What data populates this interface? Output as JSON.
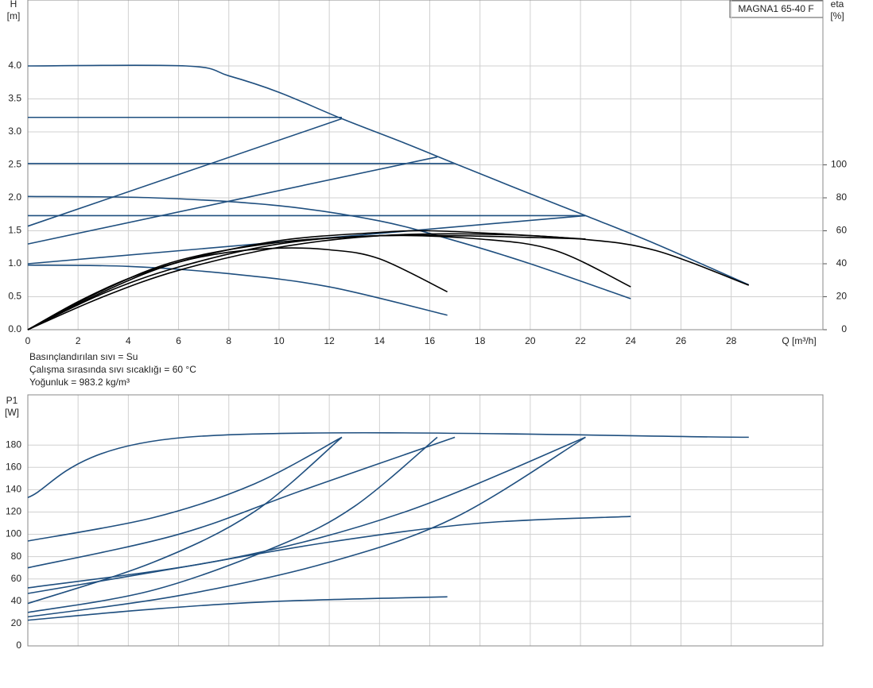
{
  "chart_data": [
    {
      "type": "line",
      "title": "MAGNA1 65-40 F",
      "ylabel": "H",
      "yunit": "[m]",
      "y2label": "eta",
      "y2unit": "[%]",
      "xlabel": "Q [m³/h]",
      "annotations": [
        "Basınçlandırılan sıvı = Su",
        "Çalışma sırasında sıvı sıcaklığı = 60 °C",
        "Yoğunluk = 983.2 kg/m³"
      ],
      "xlim": [
        0,
        31.65
      ],
      "xticks": [
        0,
        2,
        4,
        6,
        8,
        10,
        12,
        14,
        16,
        18,
        20,
        22,
        24,
        26,
        28
      ],
      "ylim": [
        0,
        5
      ],
      "yticks": [
        {
          "value": 0,
          "label": "0.0"
        },
        {
          "value": 0.5,
          "label": "0.5"
        },
        {
          "value": 1,
          "label": "1.0"
        },
        {
          "value": 1.5,
          "label": "1.5"
        },
        {
          "value": 2,
          "label": "2.0"
        },
        {
          "value": 2.5,
          "label": "2.5"
        },
        {
          "value": 3,
          "label": "3.0"
        },
        {
          "value": 3.5,
          "label": "3.5"
        },
        {
          "value": 4,
          "label": "4.0"
        }
      ],
      "y2lim": [
        0,
        200
      ],
      "y2ticks": [
        0,
        20,
        40,
        60,
        80,
        100
      ],
      "grid": true,
      "series": [
        {
          "color": "#1f4f7f",
          "x": [
            0,
            6.3,
            8,
            10,
            12.5,
            15,
            17,
            20,
            22.2,
            25,
            28.7
          ],
          "values": [
            4.0,
            4.0,
            3.85,
            3.6,
            3.2,
            2.83,
            2.52,
            2.06,
            1.73,
            1.3,
            0.68
          ]
        },
        {
          "color": "#1f4f7f",
          "x": [
            0,
            12.5
          ],
          "values": [
            3.22,
            3.22
          ]
        },
        {
          "color": "#1f4f7f",
          "x": [
            0,
            17
          ],
          "values": [
            2.52,
            2.52
          ]
        },
        {
          "color": "#1f4f7f",
          "x": [
            0,
            22.2
          ],
          "values": [
            1.73,
            1.73
          ]
        },
        {
          "color": "#1f4f7f",
          "x": [
            0,
            12.5
          ],
          "values": [
            1.57,
            3.2
          ]
        },
        {
          "color": "#1f4f7f",
          "x": [
            0,
            16.3
          ],
          "values": [
            1.3,
            2.62
          ]
        },
        {
          "color": "#1f4f7f",
          "x": [
            0,
            22.2
          ],
          "values": [
            1.0,
            1.73
          ]
        },
        {
          "color": "#1f4f7f",
          "x": [
            0,
            5,
            10,
            14,
            17,
            20,
            24
          ],
          "values": [
            2.02,
            2.0,
            1.88,
            1.65,
            1.35,
            1.0,
            0.47
          ]
        },
        {
          "color": "#1f4f7f",
          "x": [
            0,
            4,
            8,
            12,
            16.7
          ],
          "values": [
            0.98,
            0.96,
            0.85,
            0.65,
            0.22
          ]
        },
        {
          "color": "#000000",
          "axis": "y2",
          "x": [
            0,
            2,
            4,
            6,
            8,
            10,
            12,
            14,
            16.7
          ],
          "values": [
            0,
            17,
            31,
            41,
            47,
            49.5,
            48.5,
            43,
            23
          ]
        },
        {
          "color": "#000000",
          "axis": "y2",
          "x": [
            0,
            3,
            6,
            10,
            14,
            18,
            21,
            24
          ],
          "values": [
            0,
            22,
            38,
            52,
            57,
            55,
            48,
            26
          ]
        },
        {
          "color": "#000000",
          "axis": "y2",
          "x": [
            0,
            3,
            6,
            10,
            14,
            18,
            22,
            25,
            28.7
          ],
          "values": [
            0,
            20,
            36,
            50,
            57,
            58,
            55,
            48,
            27
          ]
        },
        {
          "color": "#000000",
          "axis": "y2",
          "x": [
            0,
            3,
            6,
            10,
            14,
            16,
            19,
            22.2
          ],
          "values": [
            0,
            23,
            41,
            54,
            59,
            60,
            58,
            55
          ]
        },
        {
          "color": "#000000",
          "axis": "y2",
          "x": [
            0,
            3,
            6,
            10,
            14,
            17,
            20,
            22.2
          ],
          "values": [
            0,
            24,
            42,
            53,
            57,
            57,
            56,
            55
          ]
        }
      ]
    },
    {
      "type": "line",
      "ylabel": "P1",
      "yunit": "[W]",
      "xlim": [
        0,
        31.65
      ],
      "xticks": [
        0,
        2,
        4,
        6,
        8,
        10,
        12,
        14,
        16,
        18,
        20,
        22,
        24,
        26,
        28
      ],
      "ylim": [
        0,
        225
      ],
      "yticks": [
        0,
        20,
        40,
        60,
        80,
        100,
        120,
        140,
        160,
        180
      ],
      "grid": true,
      "series": [
        {
          "color": "#1f4f7f",
          "x": [
            0,
            6.3,
            28.7
          ],
          "values": [
            133,
            187,
            187
          ]
        },
        {
          "color": "#1f4f7f",
          "x": [
            0,
            5,
            9,
            12.5
          ],
          "values": [
            94,
            115,
            145,
            187
          ]
        },
        {
          "color": "#1f4f7f",
          "x": [
            0,
            5,
            9,
            12.5
          ],
          "values": [
            38,
            75,
            120,
            187
          ]
        },
        {
          "color": "#1f4f7f",
          "x": [
            0,
            6,
            11,
            17
          ],
          "values": [
            70,
            100,
            140,
            187
          ]
        },
        {
          "color": "#1f4f7f",
          "x": [
            0,
            5,
            10,
            13,
            16.3
          ],
          "values": [
            30,
            50,
            90,
            125,
            187
          ]
        },
        {
          "color": "#1f4f7f",
          "x": [
            0,
            8,
            15,
            22.2
          ],
          "values": [
            52,
            78,
            120,
            187
          ]
        },
        {
          "color": "#1f4f7f",
          "x": [
            0,
            6,
            12,
            17,
            22.2
          ],
          "values": [
            26,
            45,
            75,
            115,
            187
          ]
        },
        {
          "color": "#1f4f7f",
          "x": [
            0,
            6,
            12,
            18,
            24
          ],
          "values": [
            47,
            70,
            93,
            110,
            116
          ]
        },
        {
          "color": "#1f4f7f",
          "x": [
            0,
            5,
            10,
            16.7
          ],
          "values": [
            23,
            33,
            40,
            44
          ]
        }
      ]
    }
  ]
}
